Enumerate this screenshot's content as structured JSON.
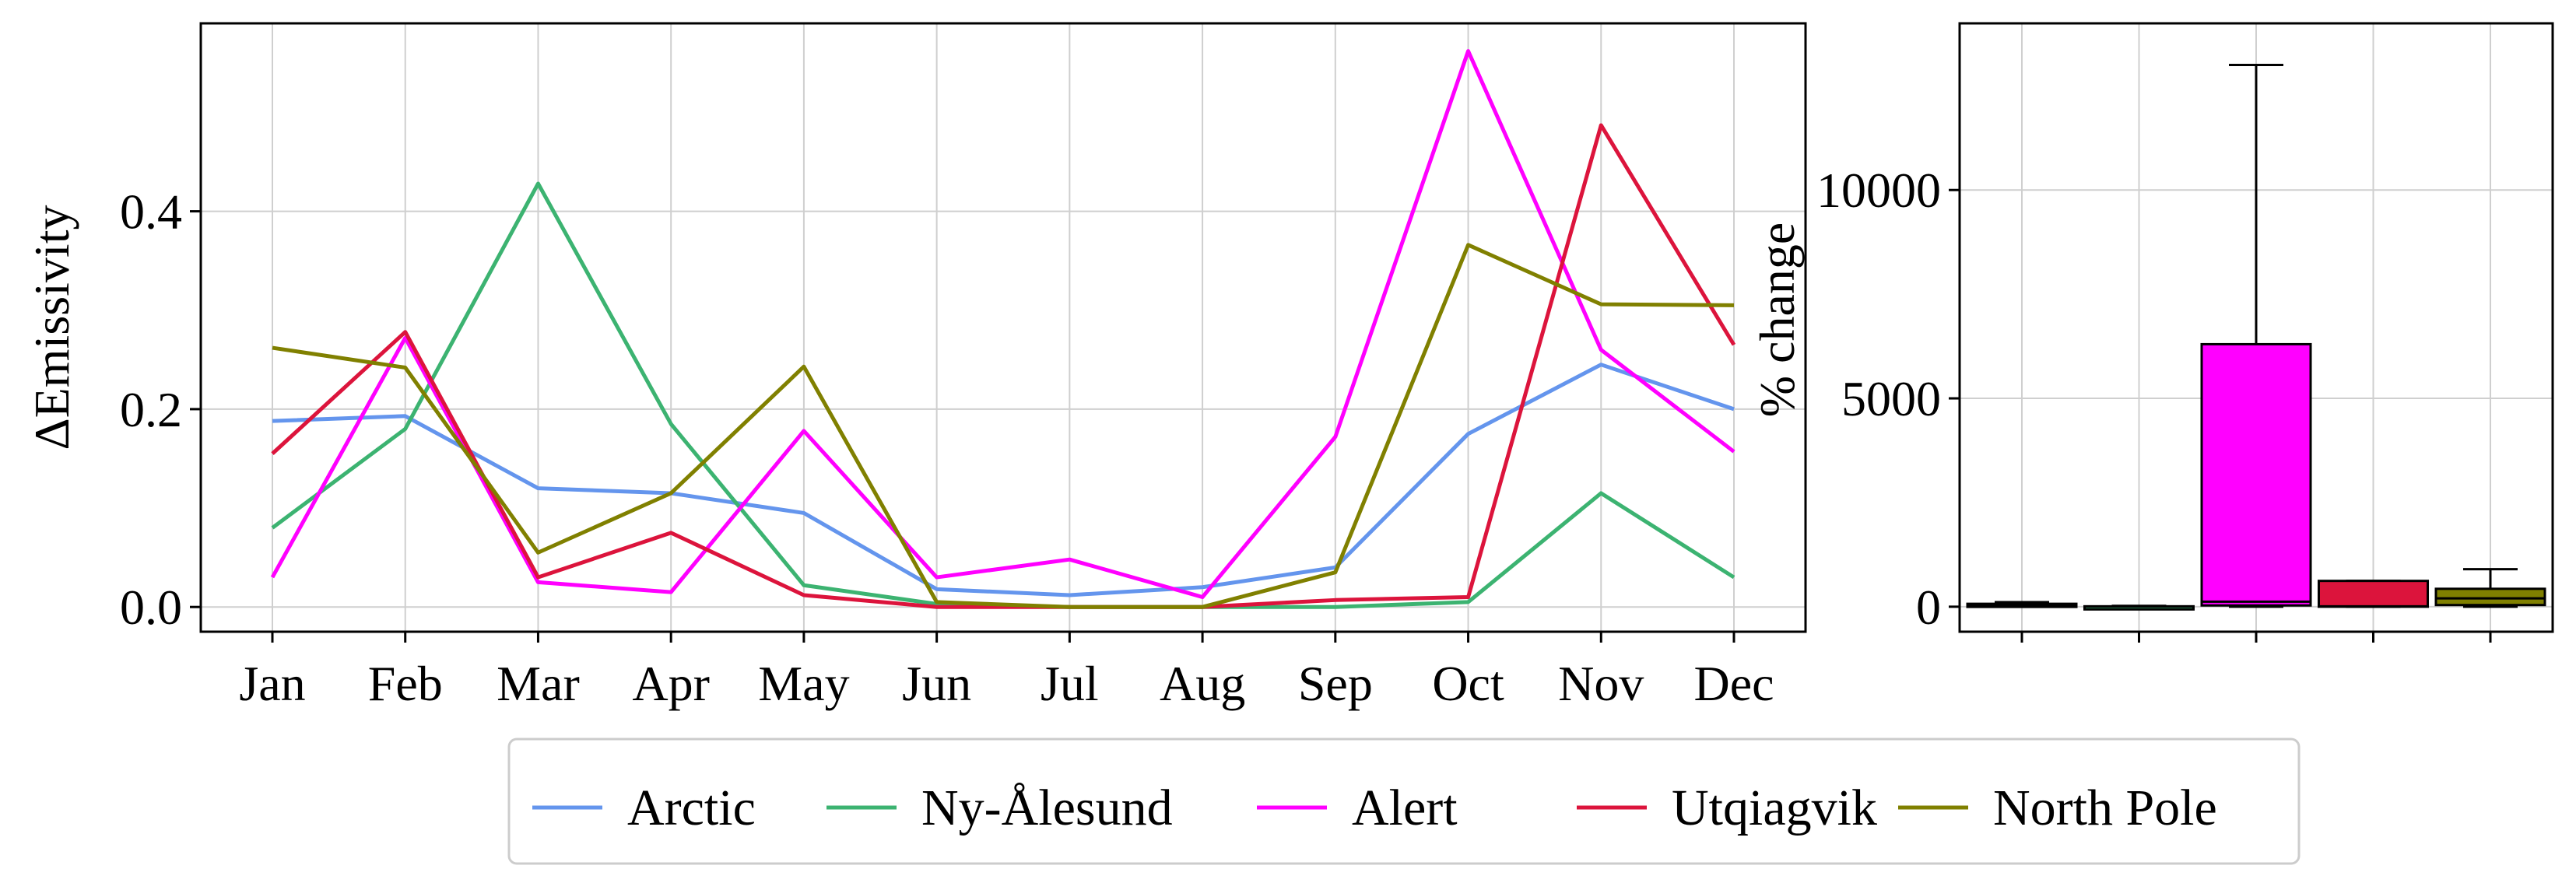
{
  "chart_data": [
    {
      "type": "line",
      "xlabel": "",
      "ylabel": "ΔEmissivity",
      "categories": [
        "Jan",
        "Feb",
        "Mar",
        "Apr",
        "May",
        "Jun",
        "Jul",
        "Aug",
        "Sep",
        "Oct",
        "Nov",
        "Dec"
      ],
      "ylim": [
        -0.025,
        0.59
      ],
      "yticks": [
        0.0,
        0.2,
        0.4
      ],
      "ytick_labels": [
        "0.0",
        "0.2",
        "0.4"
      ],
      "grid": true,
      "series": [
        {
          "name": "Arctic",
          "color": "#6495ED",
          "values": [
            0.188,
            0.193,
            0.12,
            0.115,
            0.095,
            0.018,
            0.012,
            0.02,
            0.04,
            0.175,
            0.245,
            0.2
          ]
        },
        {
          "name": "Ny-Ålesund",
          "color": "#3CB371",
          "values": [
            0.08,
            0.18,
            0.428,
            0.185,
            0.022,
            0.003,
            0.0,
            0.0,
            0.0,
            0.005,
            0.115,
            0.03
          ]
        },
        {
          "name": "Alert",
          "color": "#FF00FF",
          "values": [
            0.03,
            0.272,
            0.025,
            0.015,
            0.178,
            0.03,
            0.048,
            0.01,
            0.172,
            0.562,
            0.26,
            0.157
          ]
        },
        {
          "name": "Utqiagvik",
          "color": "#DC143C",
          "values": [
            0.155,
            0.278,
            0.03,
            0.075,
            0.012,
            0.0,
            0.0,
            0.0,
            0.007,
            0.01,
            0.487,
            0.265
          ]
        },
        {
          "name": "North Pole",
          "color": "#808000",
          "values": [
            0.262,
            0.242,
            0.055,
            0.115,
            0.243,
            0.005,
            0.0,
            0.0,
            0.035,
            0.366,
            0.306,
            0.305
          ]
        }
      ]
    },
    {
      "type": "box",
      "xlabel": "",
      "ylabel": "% change",
      "ylim": [
        -600,
        14000
      ],
      "yticks": [
        0,
        5000,
        10000
      ],
      "ytick_labels": [
        "0",
        "5000",
        "10000"
      ],
      "grid": true,
      "boxes": [
        {
          "name": "Arctic",
          "color": "#6495ED",
          "whisker_low": 0,
          "q1": 10,
          "median": 40,
          "q3": 70,
          "whisker_high": 110
        },
        {
          "name": "Ny-Ålesund",
          "color": "#3CB371",
          "whisker_low": 0,
          "q1": 0,
          "median": 5,
          "q3": 10,
          "whisker_high": 20
        },
        {
          "name": "Alert",
          "color": "#FF00FF",
          "whisker_low": 0,
          "q1": 30,
          "median": 120,
          "q3": 6300,
          "whisker_high": 13000
        },
        {
          "name": "Utqiagvik",
          "color": "#DC143C",
          "whisker_low": 0,
          "q1": 0,
          "median": 10,
          "q3": 620,
          "whisker_high": 620
        },
        {
          "name": "North Pole",
          "color": "#808000",
          "whisker_low": 0,
          "q1": 40,
          "median": 200,
          "q3": 430,
          "whisker_high": 900
        }
      ]
    }
  ],
  "legend": {
    "placement": "bottom-center",
    "entries": [
      {
        "label": "Arctic",
        "color": "#6495ED"
      },
      {
        "label": "Ny-Ålesund",
        "color": "#3CB371"
      },
      {
        "label": "Alert",
        "color": "#FF00FF"
      },
      {
        "label": "Utqiagvik",
        "color": "#DC143C"
      },
      {
        "label": "North Pole",
        "color": "#808000"
      }
    ]
  }
}
